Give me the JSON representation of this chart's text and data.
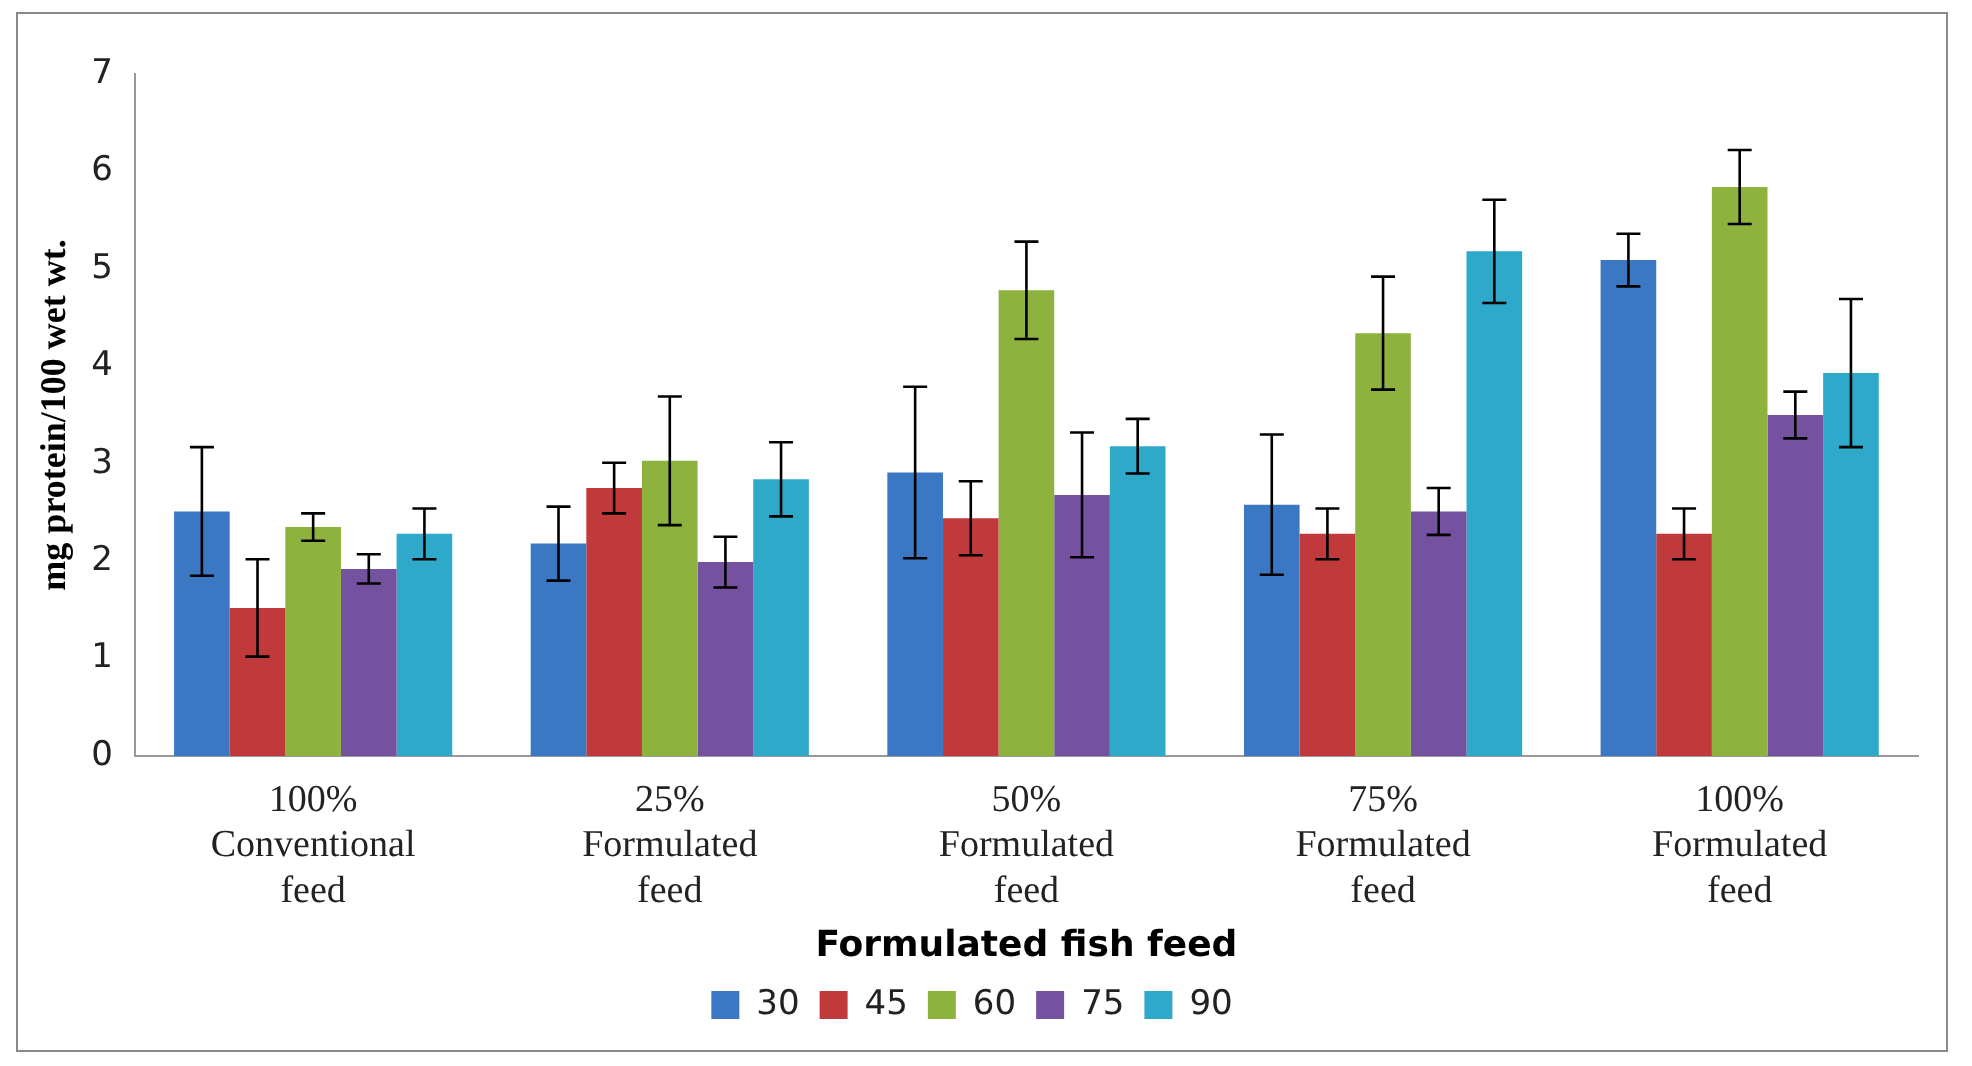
{
  "chart_data": {
    "type": "bar",
    "xlabel": "Formulated fish feed",
    "ylabel": "mg protein/100 wet wt.",
    "categories": [
      "100% Conventional feed",
      "25% Formulated feed",
      "50% Formulated feed",
      "75% Formulated feed",
      "100% Formulated feed"
    ],
    "series": [
      {
        "name": "30",
        "color": "#3a78c4",
        "values": [
          2.51,
          2.18,
          2.91,
          2.58,
          5.09
        ],
        "errors": [
          0.66,
          0.38,
          0.88,
          0.72,
          0.27
        ]
      },
      {
        "name": "45",
        "color": "#c0393b",
        "values": [
          1.52,
          2.75,
          2.44,
          2.28,
          2.28
        ],
        "errors": [
          0.5,
          0.26,
          0.38,
          0.26,
          0.26
        ]
      },
      {
        "name": "60",
        "color": "#8db33e",
        "values": [
          2.35,
          3.03,
          4.78,
          4.34,
          5.84
        ],
        "errors": [
          0.14,
          0.66,
          0.5,
          0.58,
          0.38
        ]
      },
      {
        "name": "75",
        "color": "#7452a0",
        "values": [
          1.92,
          1.99,
          2.68,
          2.51,
          3.5
        ],
        "errors": [
          0.15,
          0.26,
          0.64,
          0.24,
          0.24
        ]
      },
      {
        "name": "90",
        "color": "#2fa9c9",
        "values": [
          2.28,
          2.84,
          3.18,
          5.18,
          3.93
        ],
        "errors": [
          0.26,
          0.38,
          0.28,
          0.53,
          0.76
        ]
      }
    ],
    "ylim": [
      0,
      7
    ],
    "yticks": [
      0,
      1,
      2,
      3,
      4,
      5,
      6,
      7
    ],
    "grid": false,
    "legend": "bottom"
  }
}
